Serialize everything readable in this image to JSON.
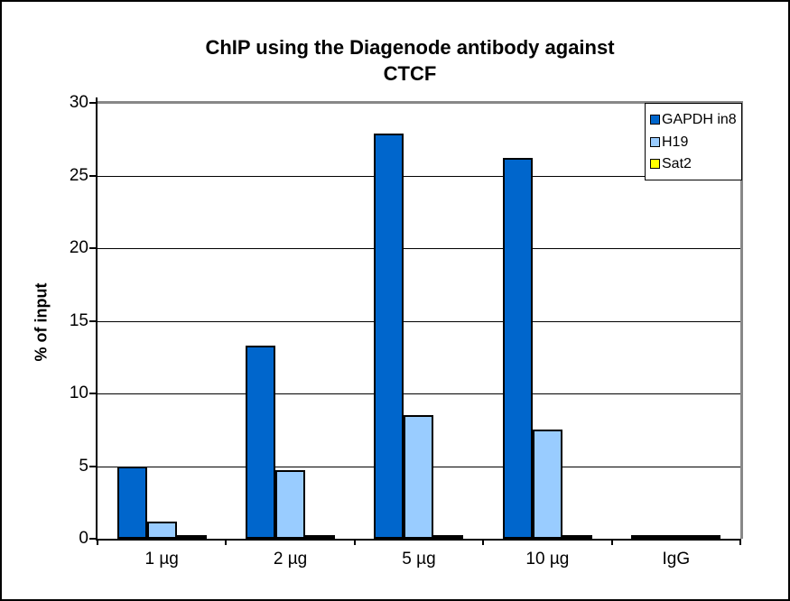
{
  "window": {
    "background": "#ffffff",
    "border_color": "#000000"
  },
  "chart_data": {
    "type": "bar",
    "title": "ChIP using the Diagenode antibody against CTCF",
    "title_lines": [
      "ChIP using the Diagenode antibody against",
      "CTCF"
    ],
    "ylabel": "% of input",
    "xlabel": "",
    "ylim": [
      0,
      30
    ],
    "ytick_step": 5,
    "ytick_labels": [
      "0",
      "5",
      "10",
      "15",
      "20",
      "25",
      "30"
    ],
    "categories": [
      "1 µg",
      "2 µg",
      "5 µg",
      "10 µg",
      "IgG"
    ],
    "series": [
      {
        "name": "GAPDH in8",
        "color": "#0066CC",
        "values": [
          5.0,
          13.3,
          27.9,
          26.2,
          0.02
        ]
      },
      {
        "name": "H19",
        "color": "#99CCFF",
        "values": [
          1.2,
          4.7,
          8.5,
          7.5,
          0.02
        ]
      },
      {
        "name": "Sat2",
        "color": "#FFFF00",
        "values": [
          0.05,
          0.05,
          0.05,
          0.05,
          0.02
        ]
      }
    ],
    "grid": true,
    "gridline_color": "#000000",
    "bar_outline_color": "#000000",
    "plot_border_color": "#888888",
    "legend_position": "top-right"
  }
}
